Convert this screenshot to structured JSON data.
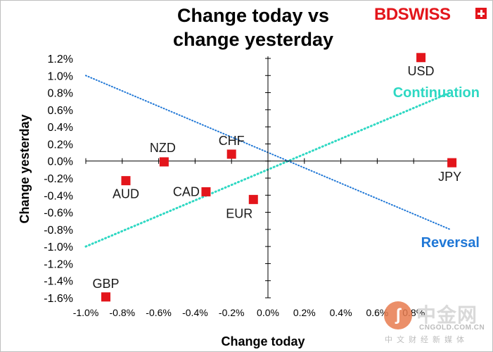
{
  "header": {
    "title_line1": "Change today vs",
    "title_line2": "change yesterday"
  },
  "logo": {
    "text_bd": "BD",
    "text_swiss": "SWISS"
  },
  "watermark": {
    "text_cn": "中金网",
    "url": "CNGOLD.COM.CN",
    "sub": "中文财经新媒体",
    "swirl": "ʃ"
  },
  "colors": {
    "points": "#e3151b",
    "continuation": "#2ed8c3",
    "reversal": "#1f77d6",
    "axis": "#000000",
    "brand": "#e3151b"
  },
  "chart_data": {
    "type": "scatter",
    "title": "Change today vs change yesterday",
    "xlabel": "Change today",
    "ylabel": "Change yesterday",
    "xlim": [
      -1.0,
      1.0
    ],
    "ylim": [
      -1.6,
      1.2
    ],
    "x_ticks": [
      -1.0,
      -0.8,
      -0.6,
      -0.4,
      -0.2,
      0.0,
      0.2,
      0.4,
      0.6,
      0.8
    ],
    "x_tick_labels": [
      "-1.0%",
      "-0.8%",
      "-0.6%",
      "-0.4%",
      "-0.2%",
      "0.0%",
      "0.2%",
      "0.4%",
      "0.6%",
      "0.8%"
    ],
    "y_ticks": [
      1.2,
      1.0,
      0.8,
      0.6,
      0.4,
      0.2,
      0.0,
      -0.2,
      -0.4,
      -0.6,
      -0.8,
      -1.0,
      -1.2,
      -1.4,
      -1.6
    ],
    "y_tick_labels": [
      "1.2%",
      "1.0%",
      "0.8%",
      "0.6%",
      "0.4%",
      "0.2%",
      "0.0%",
      "-0.2%",
      "-0.4%",
      "-0.6%",
      "-0.8%",
      "-1.0%",
      "-1.2%",
      "-1.4%",
      "-1.6%"
    ],
    "points": [
      {
        "label": "USD",
        "x": 0.84,
        "y": 1.21,
        "label_pos": "below"
      },
      {
        "label": "JPY",
        "x": 1.01,
        "y": -0.02,
        "label_pos": "below-left"
      },
      {
        "label": "CHF",
        "x": -0.2,
        "y": 0.08,
        "label_pos": "above"
      },
      {
        "label": "NZD",
        "x": -0.57,
        "y": -0.01,
        "label_pos": "above-left"
      },
      {
        "label": "AUD",
        "x": -0.78,
        "y": -0.23,
        "label_pos": "below"
      },
      {
        "label": "CAD",
        "x": -0.34,
        "y": -0.36,
        "label_pos": "left"
      },
      {
        "label": "EUR",
        "x": -0.08,
        "y": -0.45,
        "label_pos": "below-left"
      },
      {
        "label": "GBP",
        "x": -0.89,
        "y": -1.59,
        "label_pos": "above"
      }
    ],
    "lines": [
      {
        "name": "Continuation",
        "from": [
          -1.0,
          -1.0
        ],
        "to": [
          1.0,
          0.8
        ],
        "style": "dotted"
      },
      {
        "name": "Reversal",
        "from": [
          -1.0,
          1.0
        ],
        "to": [
          1.0,
          -0.8
        ],
        "style": "dotted"
      }
    ],
    "grid": false
  }
}
